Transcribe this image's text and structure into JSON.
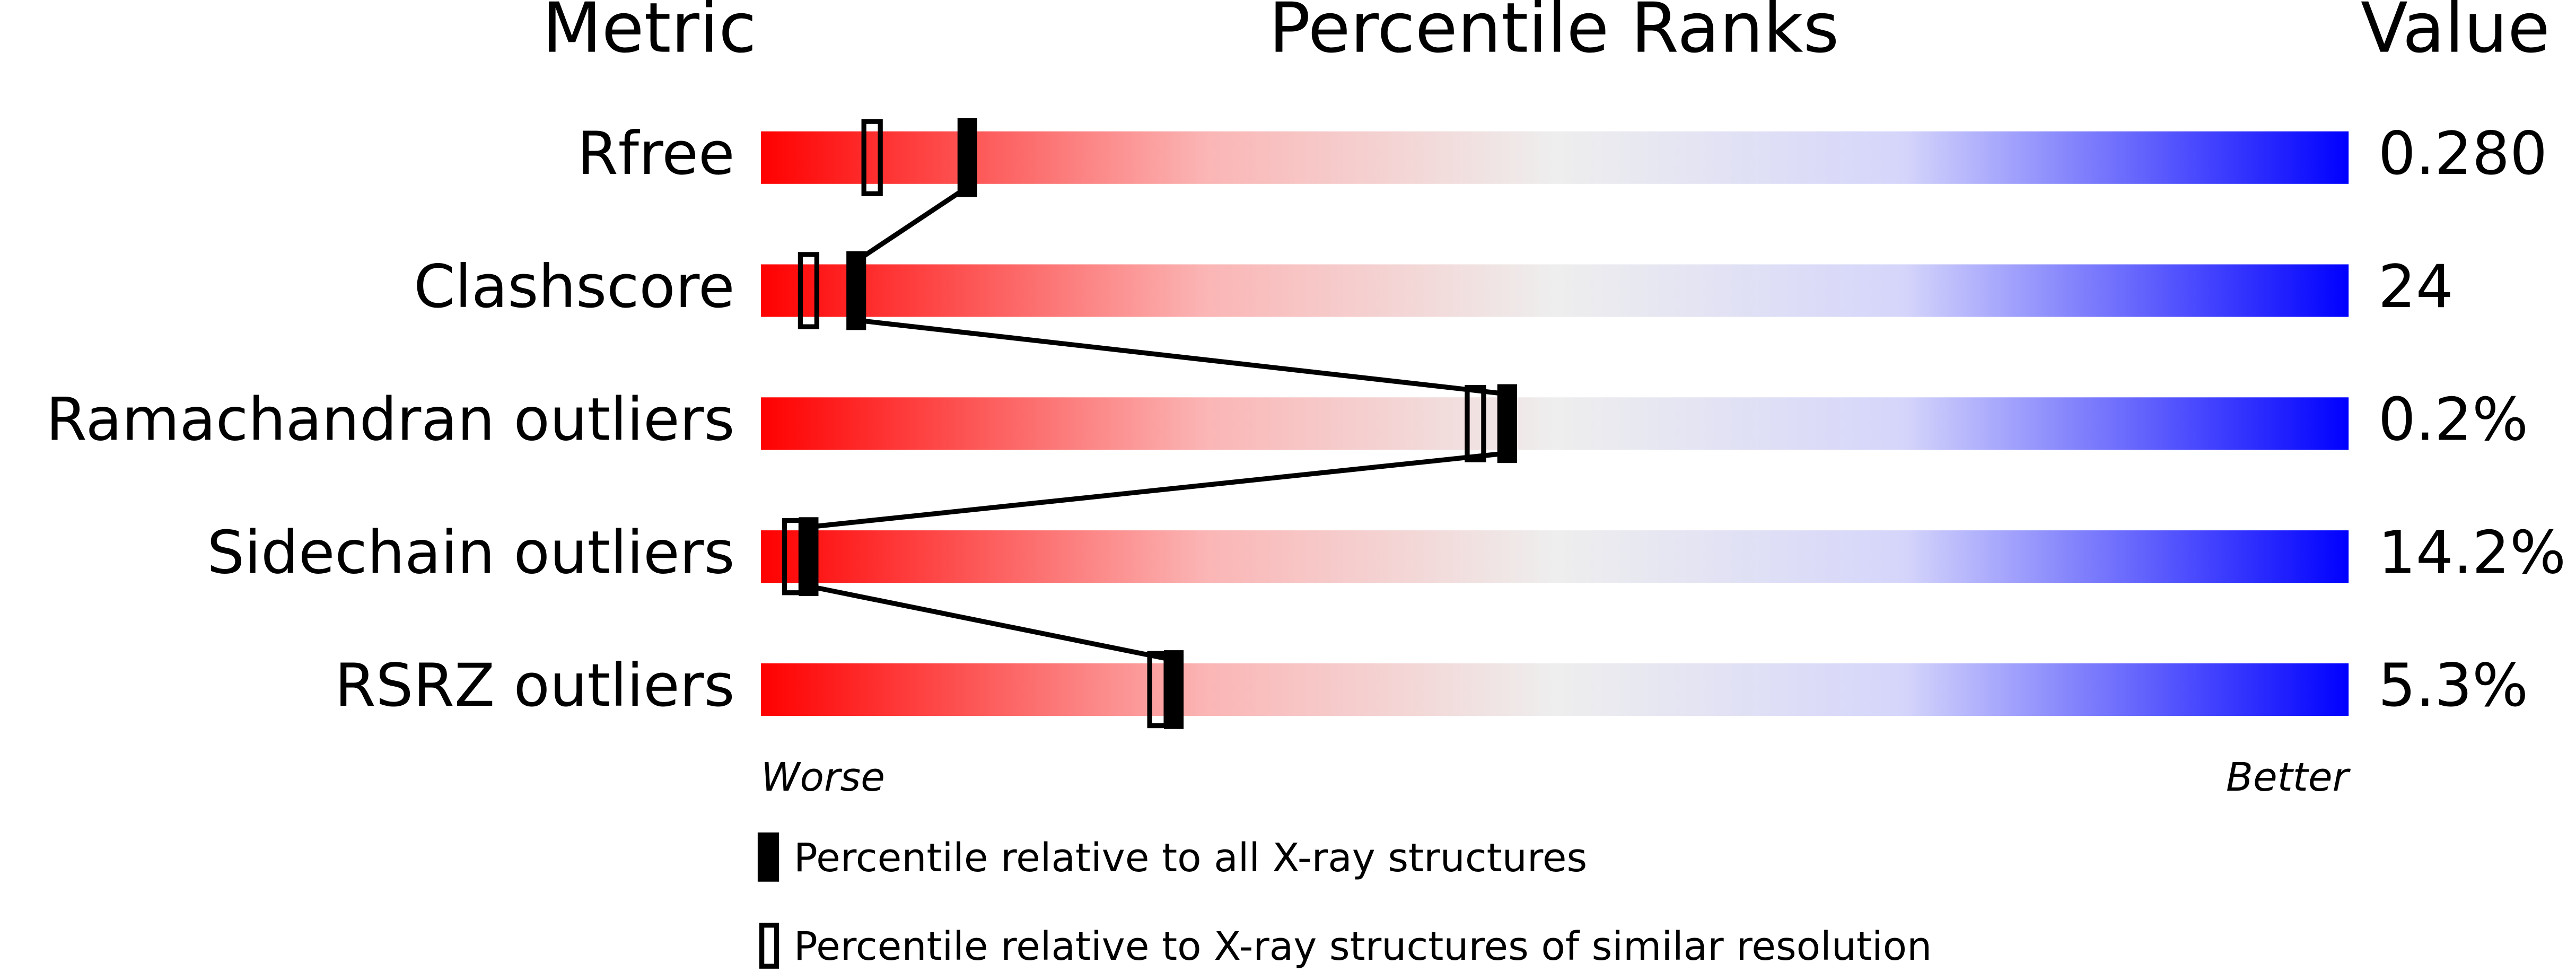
{
  "chart_data": {
    "type": "percentile-slider",
    "headers": {
      "metric": "Metric",
      "ranks": "Percentile Ranks",
      "value": "Value"
    },
    "categories": [
      "Rfree",
      "Clashscore",
      "Ramachandran outliers",
      "Sidechain outliers",
      "RSRZ outliers"
    ],
    "metric_values": [
      "0.280",
      "24",
      "0.2%",
      "14.2%",
      "5.3%"
    ],
    "xlim": [
      0,
      100
    ],
    "axis_labels": {
      "low": "Worse",
      "high": "Better"
    },
    "series": [
      {
        "name": "Percentile relative to all X-ray structures",
        "color": "#000000",
        "marker": "filled",
        "values": [
          13,
          6,
          47,
          3,
          26
        ]
      },
      {
        "name": "Percentile relative to X-ray structures of similar resolution",
        "color": "#000000",
        "marker": "open",
        "values": [
          7,
          3,
          45,
          2,
          25
        ]
      }
    ]
  }
}
